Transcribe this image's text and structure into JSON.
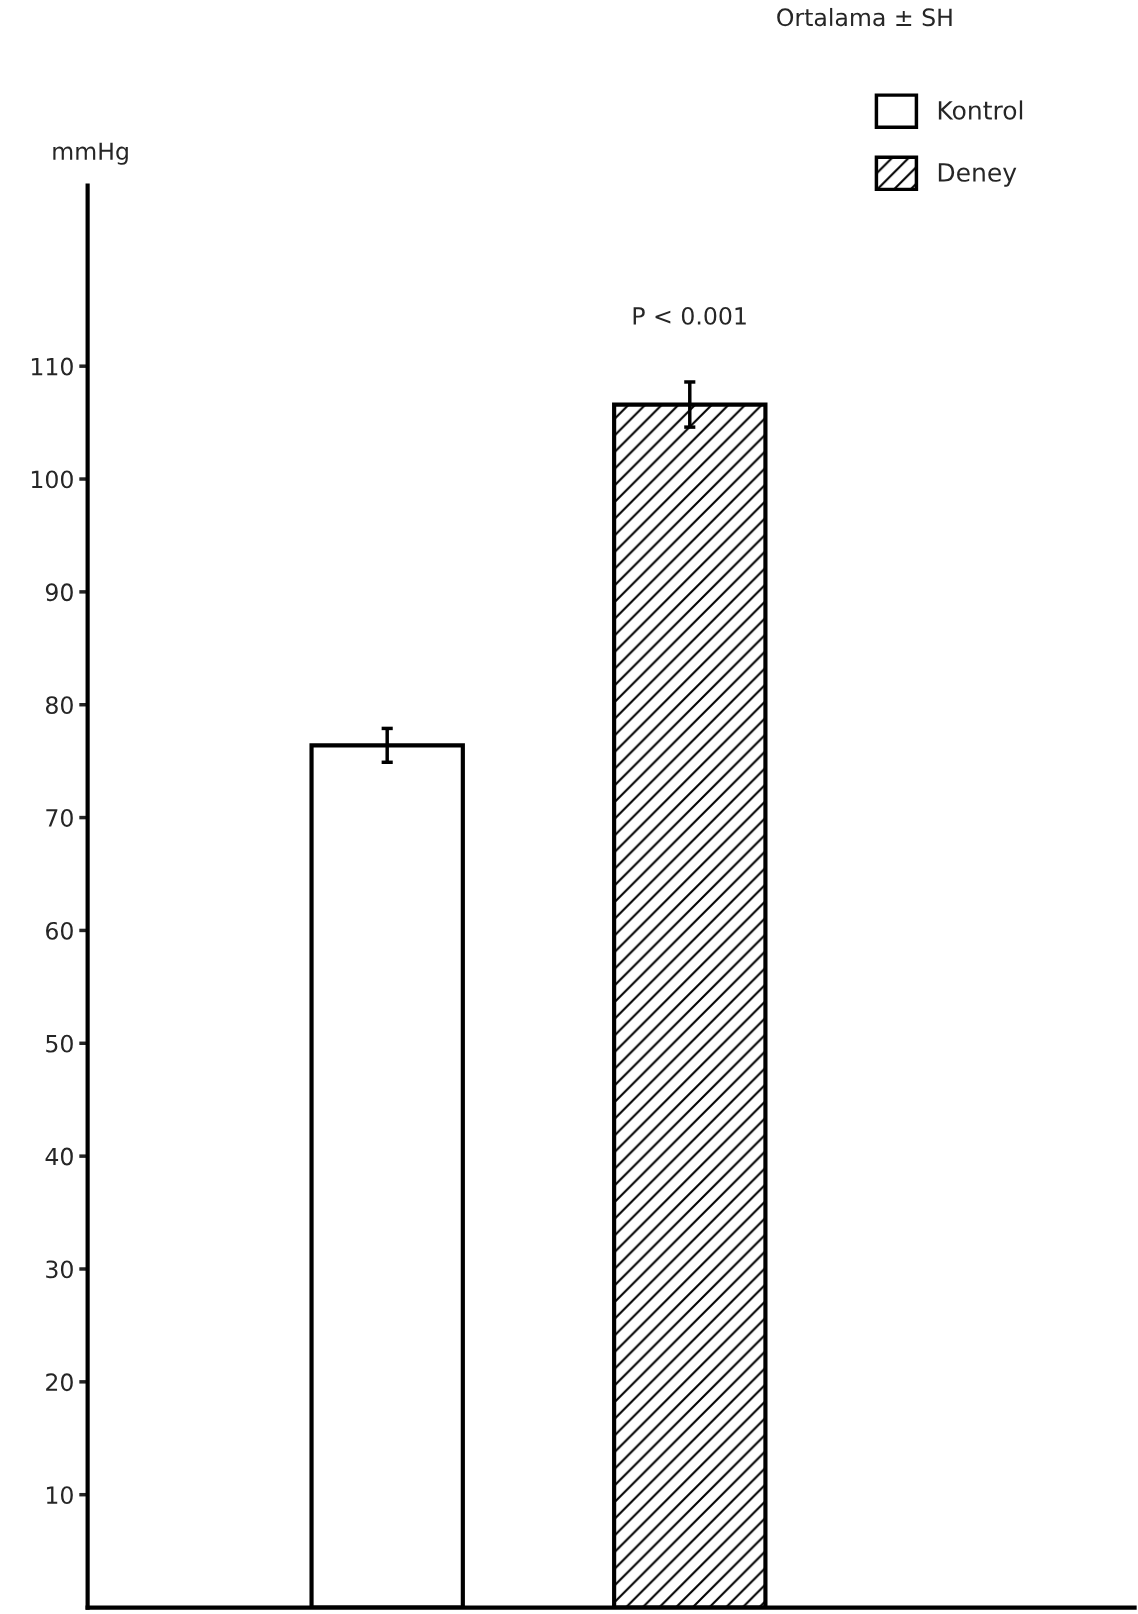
{
  "chart_data": {
    "type": "bar",
    "ylabel": "mmHg",
    "categories": [
      null,
      null
    ],
    "series": [
      {
        "name": "Kontrol",
        "color": "#ffffff",
        "values": [
          76.4,
          null
        ],
        "errors": [
          1.5,
          null
        ]
      },
      {
        "name": "Deney",
        "color": "#000000",
        "values": [
          null,
          106.6
        ],
        "errors": [
          null,
          2
        ]
      }
    ],
    "ylim": [
      0,
      126
    ],
    "yticks": [
      10,
      20,
      30,
      40,
      50,
      60,
      70,
      80,
      90,
      100,
      110
    ],
    "grid": false,
    "legend": "top right",
    "annotations": [
      "Ortalama ± SH",
      "P < 0.001"
    ]
  }
}
